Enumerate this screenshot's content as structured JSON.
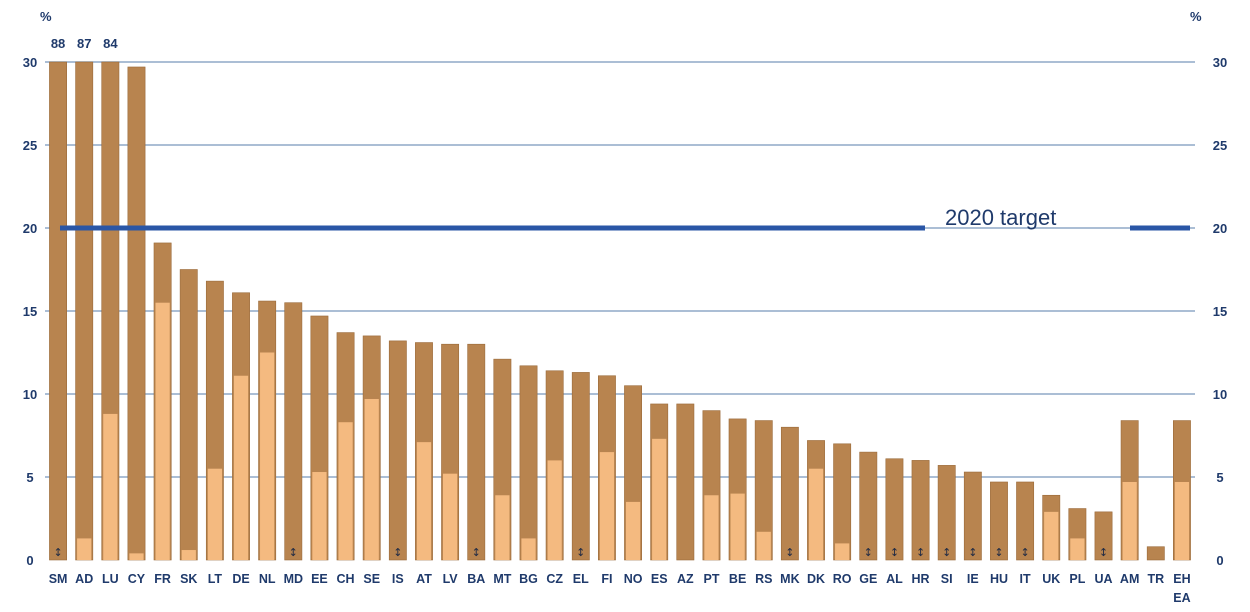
{
  "chart_data": {
    "type": "bar",
    "stacked": true,
    "ylabel_left": "%",
    "ylabel_right": "%",
    "ylim": [
      0,
      30
    ],
    "yticks": [
      0,
      5,
      10,
      15,
      20,
      25,
      30
    ],
    "grid": true,
    "categories": [
      "SM",
      "AD",
      "LU",
      "CY",
      "FR",
      "SK",
      "LT",
      "DE",
      "NL",
      "MD",
      "EE",
      "CH",
      "SE",
      "IS",
      "AT",
      "LV",
      "BA",
      "MT",
      "BG",
      "CZ",
      "EL",
      "FI",
      "NO",
      "ES",
      "AZ",
      "PT",
      "BE",
      "RS",
      "MK",
      "DK",
      "RO",
      "GE",
      "AL",
      "HR",
      "SI",
      "IE",
      "HU",
      "IT",
      "UK",
      "PL",
      "UA",
      "AM",
      "TR",
      "EH"
    ],
    "last_category_sublabel": "EA",
    "totals": [
      88,
      87,
      84,
      29.7,
      19.1,
      17.5,
      16.8,
      16.1,
      15.6,
      15.5,
      14.7,
      13.7,
      13.5,
      13.2,
      13.1,
      13.0,
      13.0,
      12.1,
      11.7,
      11.4,
      11.3,
      11.1,
      10.5,
      9.4,
      9.4,
      9.0,
      8.5,
      8.4,
      8.0,
      7.2,
      7.0,
      6.5,
      6.1,
      6.0,
      5.7,
      5.3,
      4.7,
      4.7,
      3.9,
      3.1,
      2.9,
      8.4,
      0.8,
      8.4
    ],
    "lower_values": [
      null,
      1.3,
      8.8,
      0.4,
      15.5,
      0.6,
      5.5,
      11.1,
      12.5,
      null,
      5.3,
      8.3,
      9.7,
      null,
      7.1,
      5.2,
      null,
      3.9,
      1.3,
      6.0,
      null,
      6.5,
      3.5,
      7.3,
      0,
      3.9,
      4.0,
      1.7,
      null,
      5.5,
      1.0,
      null,
      null,
      null,
      null,
      null,
      null,
      null,
      2.9,
      1.3,
      null,
      4.7,
      0,
      4.7
    ],
    "overflow_labels": [
      "88",
      "87",
      "84"
    ],
    "target": {
      "value": 20,
      "label": "2020 target"
    },
    "marker_glyph": "↕",
    "colors": {
      "upper": "#b8844f",
      "lower": "#f4ba80",
      "target": "#2a56a6",
      "grid": "#8fa9c7",
      "text": "#1f3a6b"
    }
  }
}
